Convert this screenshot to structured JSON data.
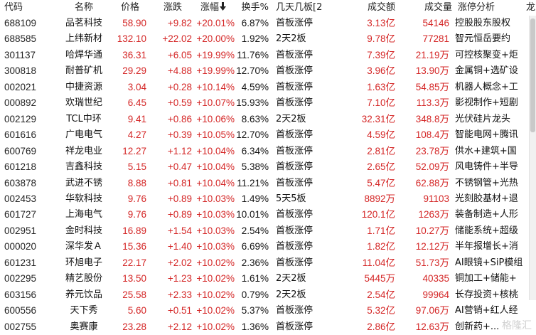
{
  "header": {
    "code": "代码",
    "name": "名称",
    "price": "价格",
    "change": "涨跌",
    "pct": "涨幅",
    "turnover": "换手%",
    "days": "几天几板[2",
    "amount": "成交额",
    "volume": "成交量",
    "reason": "涨停分析",
    "extra": "龙"
  },
  "colors": {
    "up": "#d42525",
    "text": "#111111",
    "background": "#ffffff"
  },
  "rows": [
    {
      "code": "688109",
      "name": "品茗科技",
      "price": "58.90",
      "change": "+9.82",
      "pct": "+20.01%",
      "turnover": "6.87%",
      "days": "首板涨停",
      "amount": "3.13亿",
      "volume": "54146",
      "reason": "控股股东股权"
    },
    {
      "code": "688585",
      "name": "上纬新材",
      "price": "132.10",
      "change": "+22.02",
      "pct": "+20.00%",
      "turnover": "1.92%",
      "days": "2天2板",
      "amount": "9.78亿",
      "volume": "77281",
      "reason": "智元恒岳要约"
    },
    {
      "code": "301137",
      "name": "哈焊华通",
      "price": "36.31",
      "change": "+6.05",
      "pct": "+19.99%",
      "turnover": "11.76%",
      "days": "首板涨停",
      "amount": "7.39亿",
      "volume": "21.19万",
      "reason": "可控核聚变+炬"
    },
    {
      "code": "300818",
      "name": "耐普矿机",
      "price": "29.29",
      "change": "+4.88",
      "pct": "+19.99%",
      "turnover": "12.70%",
      "days": "首板涨停",
      "amount": "3.96亿",
      "volume": "13.90万",
      "reason": "金属铜+选矿设"
    },
    {
      "code": "002021",
      "name": "中捷资源",
      "price": "3.04",
      "change": "+0.28",
      "pct": "+10.14%",
      "turnover": "4.59%",
      "days": "首板涨停",
      "amount": "1.63亿",
      "volume": "54.85万",
      "reason": "机器人概念+工"
    },
    {
      "code": "000892",
      "name": "欢瑞世纪",
      "price": "6.45",
      "change": "+0.59",
      "pct": "+10.07%",
      "turnover": "15.93%",
      "days": "首板涨停",
      "amount": "7.10亿",
      "volume": "113.3万",
      "reason": "影视制作+短剧"
    },
    {
      "code": "002129",
      "name": "TCL中环",
      "price": "9.41",
      "change": "+0.86",
      "pct": "+10.06%",
      "turnover": "8.63%",
      "days": "2天2板",
      "amount": "32.31亿",
      "volume": "348.8万",
      "reason": "光伏硅片龙头"
    },
    {
      "code": "601616",
      "name": "广电电气",
      "price": "4.27",
      "change": "+0.39",
      "pct": "+10.05%",
      "turnover": "12.70%",
      "days": "首板涨停",
      "amount": "4.59亿",
      "volume": "108.4万",
      "reason": "智能电网+腾讯"
    },
    {
      "code": "600769",
      "name": "祥龙电业",
      "price": "12.27",
      "change": "+1.12",
      "pct": "+10.04%",
      "turnover": "6.34%",
      "days": "首板涨停",
      "amount": "2.81亿",
      "volume": "23.78万",
      "reason": "供水+建筑+国"
    },
    {
      "code": "601218",
      "name": "吉鑫科技",
      "price": "5.15",
      "change": "+0.47",
      "pct": "+10.04%",
      "turnover": "5.38%",
      "days": "首板涨停",
      "amount": "2.65亿",
      "volume": "52.09万",
      "reason": "风电铸件+半导"
    },
    {
      "code": "603878",
      "name": "武进不锈",
      "price": "8.88",
      "change": "+0.81",
      "pct": "+10.04%",
      "turnover": "11.21%",
      "days": "首板涨停",
      "amount": "5.47亿",
      "volume": "62.88万",
      "reason": "不锈钢管+光热"
    },
    {
      "code": "002453",
      "name": "华软科技",
      "price": "9.76",
      "change": "+0.89",
      "pct": "+10.03%",
      "turnover": "1.49%",
      "days": "5天5板",
      "amount": "8892万",
      "volume": "91103",
      "reason": "光刻胶基材+退"
    },
    {
      "code": "601727",
      "name": "上海电气",
      "price": "9.76",
      "change": "+0.89",
      "pct": "+10.03%",
      "turnover": "10.01%",
      "days": "首板涨停",
      "amount": "120.1亿",
      "volume": "1263万",
      "reason": "装备制造+人形"
    },
    {
      "code": "002951",
      "name": "金时科技",
      "price": "16.89",
      "change": "+1.54",
      "pct": "+10.03%",
      "turnover": "2.54%",
      "days": "首板涨停",
      "amount": "1.71亿",
      "volume": "10.27万",
      "reason": "储能系统+超级"
    },
    {
      "code": "000020",
      "name": "深华发Ａ",
      "price": "15.36",
      "change": "+1.40",
      "pct": "+10.03%",
      "turnover": "6.69%",
      "days": "首板涨停",
      "amount": "1.82亿",
      "volume": "12.12万",
      "reason": "半年报增长+消"
    },
    {
      "code": "601231",
      "name": "环旭电子",
      "price": "22.17",
      "change": "+2.02",
      "pct": "+10.02%",
      "turnover": "2.36%",
      "days": "首板涨停",
      "amount": "11.04亿",
      "volume": "51.73万",
      "reason": "AI眼镜+SiP模组"
    },
    {
      "code": "002295",
      "name": "精艺股份",
      "price": "13.50",
      "change": "+1.23",
      "pct": "+10.02%",
      "turnover": "1.61%",
      "days": "2天2板",
      "amount": "5445万",
      "volume": "40335",
      "reason": "铜加工+储能+"
    },
    {
      "code": "603156",
      "name": "养元饮品",
      "price": "25.58",
      "change": "+2.33",
      "pct": "+10.02%",
      "turnover": "0.79%",
      "days": "2天2板",
      "amount": "2.54亿",
      "volume": "99964",
      "reason": "长存投资+核桃"
    },
    {
      "code": "600556",
      "name": "天下秀",
      "price": "5.60",
      "change": "+0.51",
      "pct": "+10.02%",
      "turnover": "5.37%",
      "days": "首板涨停",
      "amount": "5.32亿",
      "volume": "97.06万",
      "reason": "AI营销+红人经"
    },
    {
      "code": "002755",
      "name": "奥赛康",
      "price": "23.28",
      "change": "+2.12",
      "pct": "+10.02%",
      "turnover": "1.36%",
      "days": "首板涨停",
      "amount": "2.86亿",
      "volume": "12.63万",
      "reason": "创新药+..."
    }
  ],
  "watermark": "格隆汇"
}
